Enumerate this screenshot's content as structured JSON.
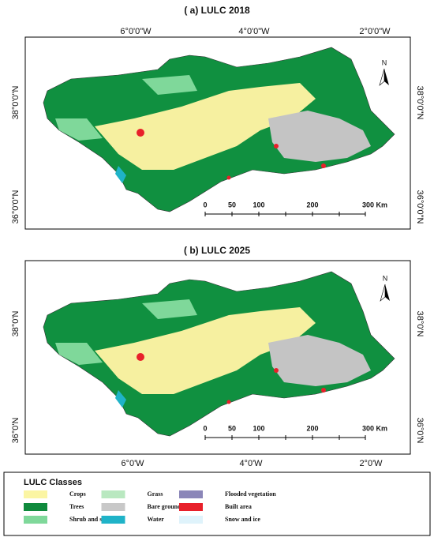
{
  "panels": [
    {
      "title": "( a) LULC 2018",
      "top_labels": [
        "6°0'0\"W",
        "4°0'0\"W",
        "2°0'0\"W"
      ],
      "left_labels": [
        "38°0'0\"N",
        "36°0'0\"N"
      ],
      "right_labels": [
        "38°0'0\"N",
        "36°0'0\"N"
      ],
      "north": "N",
      "scale_labels": [
        "0",
        "50",
        "100",
        "200",
        "300 Km"
      ]
    },
    {
      "title": "( b) LULC 2025",
      "bottom_labels": [
        "6°0'W",
        "4°0'W",
        "2°0'W"
      ],
      "left_labels": [
        "38°0'N",
        "36°0'N"
      ],
      "right_labels": [
        "38°0'N",
        "36°0'N"
      ],
      "north": "N",
      "scale_labels": [
        "0",
        "50",
        "100",
        "200",
        "300 Km"
      ]
    }
  ],
  "legend": {
    "title": "LULC Classes",
    "items": [
      {
        "label": "Crops",
        "color": "#fbf5a3"
      },
      {
        "label": "Trees",
        "color": "#0f8a3c"
      },
      {
        "label": "Shrub and scrub",
        "color": "#7fd89a"
      },
      {
        "label": "Grass",
        "color": "#b9e8c0"
      },
      {
        "label": "Bare ground",
        "color": "#c8c8c8"
      },
      {
        "label": "Water",
        "color": "#1fb3c8"
      },
      {
        "label": "Flooded vegetation",
        "color": "#8b86b8"
      },
      {
        "label": "Built area",
        "color": "#e8202a"
      },
      {
        "label": "Snow and ice",
        "color": "#dff3fb"
      }
    ]
  }
}
